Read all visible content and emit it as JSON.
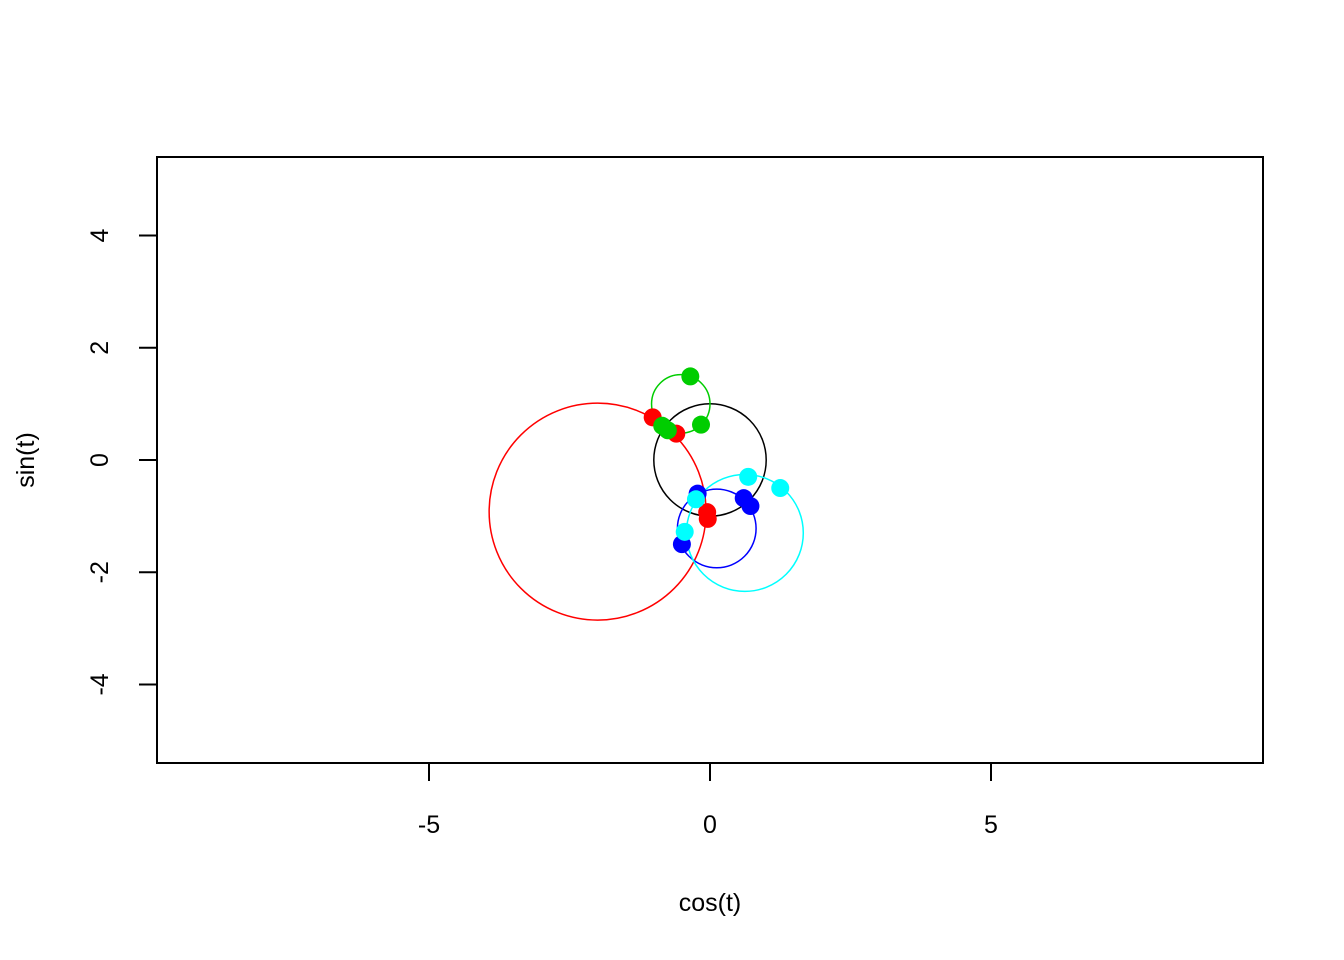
{
  "chart_data": {
    "type": "scatter",
    "xlabel": "cos(t)",
    "ylabel": "sin(t)",
    "xlim": [
      -9.84,
      9.84
    ],
    "ylim": [
      -5.4,
      5.4
    ],
    "x_ticks": [
      -5,
      0,
      5
    ],
    "x_tick_labels": [
      "-5",
      "0",
      "5"
    ],
    "y_ticks": [
      -4,
      -2,
      0,
      2,
      4
    ],
    "y_tick_labels": [
      "-4",
      "-2",
      "0",
      "2",
      "4"
    ],
    "grid": false,
    "series": [
      {
        "color": "#000000",
        "circle": {
          "cx": 0,
          "cy": 0,
          "r": 1.0
        },
        "points": []
      },
      {
        "color": "#ff0000",
        "circle": {
          "cx": -2.0,
          "cy": -0.92,
          "r": 1.93
        },
        "points": [
          [
            -1.02,
            0.76
          ],
          [
            -0.6,
            0.47
          ],
          [
            -0.05,
            -0.93
          ],
          [
            -0.04,
            -1.05
          ]
        ]
      },
      {
        "color": "#00cd00",
        "circle": {
          "cx": -0.52,
          "cy": 1.0,
          "r": 0.52
        },
        "points": [
          [
            -0.35,
            1.49
          ],
          [
            -0.85,
            0.61
          ],
          [
            -0.75,
            0.53
          ],
          [
            -0.16,
            0.63
          ]
        ]
      },
      {
        "color": "#0000ff",
        "circle": {
          "cx": 0.12,
          "cy": -1.22,
          "r": 0.7
        },
        "points": [
          [
            -0.22,
            -0.6
          ],
          [
            0.6,
            -0.68
          ],
          [
            0.72,
            -0.82
          ],
          [
            -0.5,
            -1.5
          ]
        ]
      },
      {
        "color": "#00ffff",
        "circle": {
          "cx": 0.62,
          "cy": -1.3,
          "r": 1.04
        },
        "points": [
          [
            0.68,
            -0.3
          ],
          [
            1.25,
            -0.5
          ],
          [
            -0.25,
            -0.7
          ],
          [
            -0.45,
            -1.28
          ]
        ]
      }
    ]
  }
}
